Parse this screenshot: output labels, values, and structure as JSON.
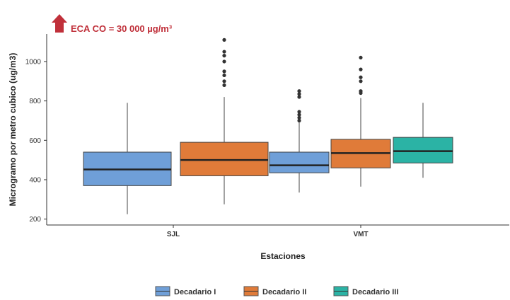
{
  "chart_data": {
    "type": "boxplot",
    "annotation": "ECA CO = 30 000 µg/m³",
    "xlabel": "Estaciones",
    "ylabel": "Microgramo por metro cubico (ug/m3)",
    "ylim": [
      170,
      1140
    ],
    "yticks": [
      200,
      400,
      600,
      800,
      1000
    ],
    "categories": [
      "SJL",
      "VMT"
    ],
    "legend_position": "bottom",
    "grid": false,
    "series": [
      {
        "name": "Decadario I",
        "color": "#6f9fd8",
        "boxes": [
          {
            "category": "SJL",
            "whisker_low": 225,
            "q1": 370,
            "median": 452,
            "q3": 540,
            "whisker_high": 790,
            "outliers": []
          },
          {
            "category": "VMT",
            "whisker_low": 335,
            "q1": 435,
            "median": 473,
            "q3": 540,
            "whisker_high": 690,
            "outliers": [
              700,
              715,
              730,
              745,
              820,
              835,
              850
            ]
          }
        ]
      },
      {
        "name": "Decadario II",
        "color": "#e07b39",
        "boxes": [
          {
            "category": "SJL",
            "whisker_low": 275,
            "q1": 420,
            "median": 500,
            "q3": 590,
            "whisker_high": 820,
            "outliers": [
              880,
              900,
              930,
              950,
              1000,
              1030,
              1050,
              1110
            ]
          },
          {
            "category": "VMT",
            "whisker_low": 365,
            "q1": 460,
            "median": 535,
            "q3": 605,
            "whisker_high": 815,
            "outliers": [
              840,
              850,
              900,
              920,
              960,
              1020
            ]
          }
        ]
      },
      {
        "name": "Decadario III",
        "color": "#2bb3a5",
        "boxes": [
          {
            "category": "VMT",
            "whisker_low": 410,
            "q1": 485,
            "median": 545,
            "q3": 615,
            "whisker_high": 790,
            "outliers": []
          }
        ]
      }
    ]
  }
}
